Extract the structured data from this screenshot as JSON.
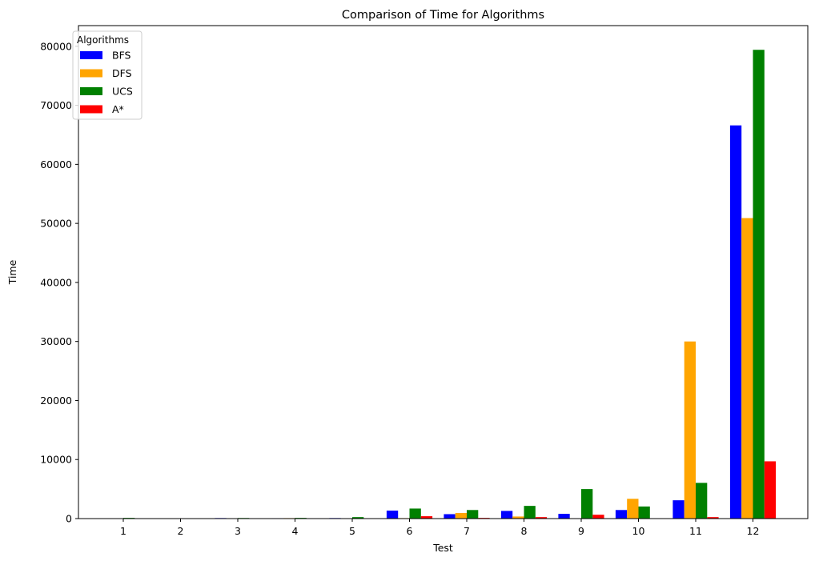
{
  "chart_data": {
    "type": "bar",
    "title": "Comparison of Time for Algorithms",
    "xlabel": "Test",
    "ylabel": "Time",
    "categories": [
      "1",
      "2",
      "3",
      "4",
      "5",
      "6",
      "7",
      "8",
      "9",
      "10",
      "11",
      "12"
    ],
    "ylim": [
      0,
      83500
    ],
    "yticks": [
      0,
      10000,
      20000,
      30000,
      40000,
      50000,
      60000,
      70000,
      80000
    ],
    "ytick_labels": [
      "0",
      "10000",
      "20000",
      "30000",
      "40000",
      "50000",
      "60000",
      "70000",
      "80000"
    ],
    "grid": false,
    "legend": {
      "title": "Algorithms",
      "placement": "top-left"
    },
    "series": [
      {
        "name": "BFS",
        "color": "#0000ff",
        "values": [
          20,
          30,
          90,
          70,
          90,
          1350,
          750,
          1300,
          800,
          1450,
          3100,
          66600
        ]
      },
      {
        "name": "DFS",
        "color": "#ffa500",
        "values": [
          10,
          10,
          30,
          80,
          30,
          80,
          950,
          350,
          40,
          3350,
          30000,
          50900
        ]
      },
      {
        "name": "UCS",
        "color": "#008000",
        "values": [
          120,
          30,
          100,
          120,
          250,
          1700,
          1450,
          2150,
          5000,
          2050,
          6050,
          79400
        ]
      },
      {
        "name": "A*",
        "color": "#ff0000",
        "values": [
          10,
          10,
          20,
          20,
          20,
          400,
          120,
          250,
          650,
          60,
          250,
          9700
        ]
      }
    ]
  }
}
